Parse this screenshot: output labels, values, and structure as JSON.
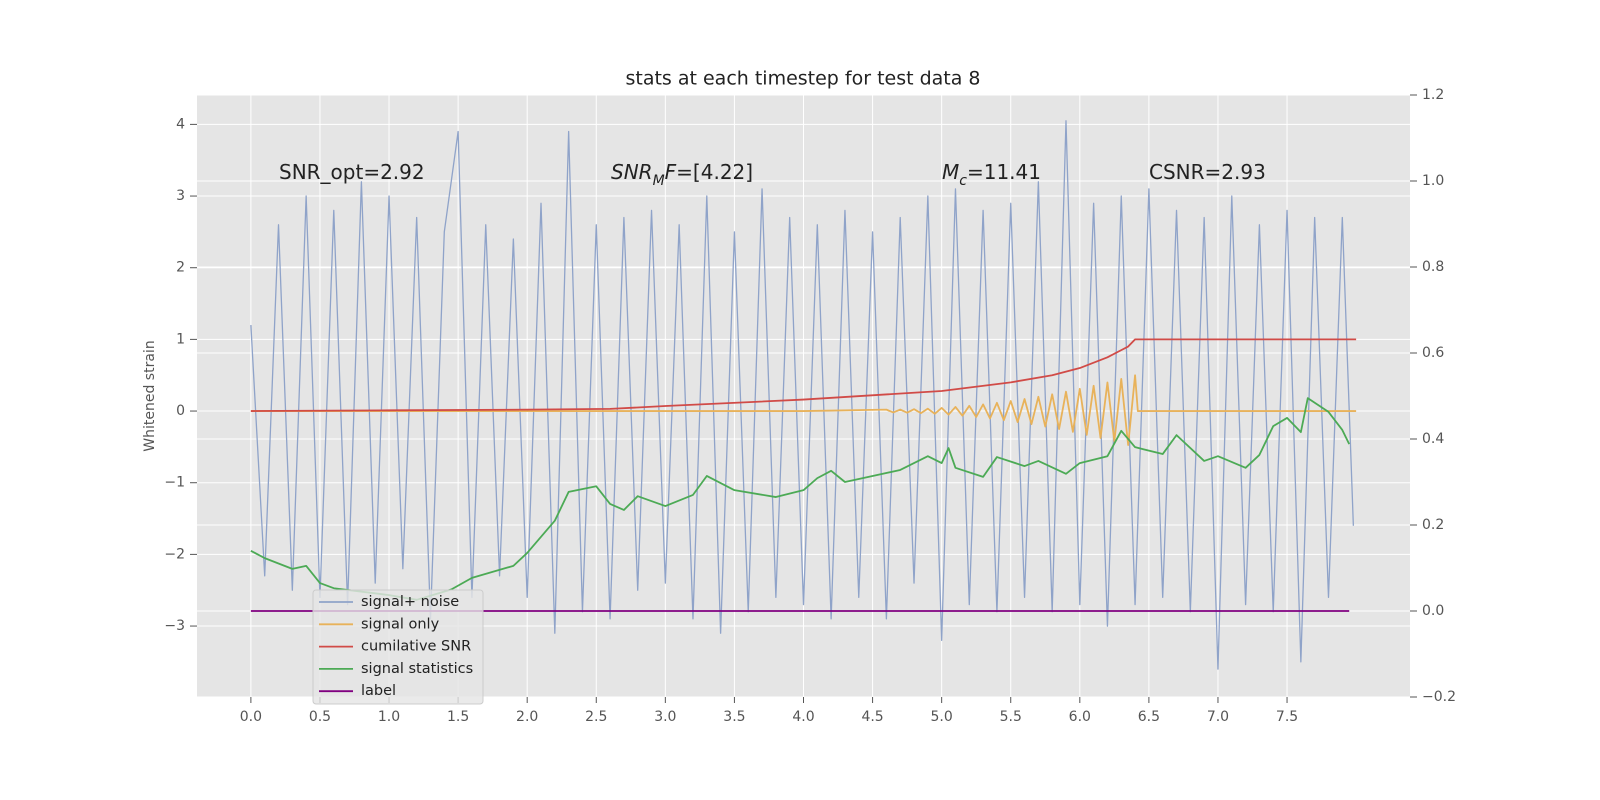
{
  "chart_data": {
    "type": "line",
    "title": "stats at each timestep for test data 8",
    "ylabel": "Whitened strain",
    "grid": true,
    "legend": "lower left",
    "xlim": [
      -0.39,
      8.39
    ],
    "ylim": [
      -3.99,
      4.41
    ],
    "y2lim": [
      -0.2,
      1.2
    ],
    "xticks": [
      {
        "value": 0,
        "label": "0.0"
      },
      0.5,
      {
        "value": 1,
        "label": "1.0"
      },
      1.5,
      {
        "value": 2,
        "label": "2.0"
      },
      2.5,
      {
        "value": 3,
        "label": "3.0"
      },
      3.5,
      {
        "value": 4,
        "label": "4.0"
      },
      4.5,
      {
        "value": 5,
        "label": "5.0"
      },
      5.5,
      {
        "value": 6,
        "label": "6.0"
      },
      6.5,
      {
        "value": 7,
        "label": "7.0"
      },
      7.5
    ],
    "yticks": [
      {
        "value": -3,
        "label": "−3"
      },
      {
        "value": -2,
        "label": "−2"
      },
      {
        "value": -1,
        "label": "−1"
      },
      0,
      1,
      2,
      3,
      4
    ],
    "y2ticks": [
      {
        "value": -0.2,
        "label": "−0.2"
      },
      {
        "value": 0,
        "label": "0.0"
      },
      0.2,
      0.4,
      0.6,
      0.8,
      {
        "value": 1,
        "label": "1.0"
      },
      1.2
    ],
    "annotations": [
      {
        "segments": [
          {
            "text": "SNR_opt=2.92"
          }
        ]
      },
      {
        "segments": [
          {
            "text": "SNR",
            "style": "italic"
          },
          {
            "text": "M",
            "style": "sub"
          },
          {
            "text": "F",
            "style": "italic"
          },
          {
            "text": "=[4.22]"
          }
        ]
      },
      {
        "segments": [
          {
            "text": "M",
            "style": "italic"
          },
          {
            "text": "c",
            "style": "sub"
          },
          {
            "text": "=11.41"
          }
        ]
      },
      {
        "segments": [
          {
            "text": "CSNR=2.93"
          }
        ]
      }
    ],
    "series": [
      {
        "name": "signal+ noise",
        "color": "#8fa3c9",
        "axis": "y",
        "x": [
          0,
          0.1,
          0.2,
          0.3,
          0.4,
          0.5,
          0.6,
          0.7,
          0.8,
          0.9,
          1,
          1.1,
          1.2,
          1.3,
          1.4,
          1.5,
          1.6,
          1.7,
          1.8,
          1.9,
          2,
          2.1,
          2.2,
          2.3,
          2.4,
          2.5,
          2.6,
          2.7,
          2.8,
          2.9,
          3,
          3.1,
          3.2,
          3.3,
          3.4,
          3.5,
          3.6,
          3.7,
          3.8,
          3.9,
          4,
          4.1,
          4.2,
          4.3,
          4.4,
          4.5,
          4.6,
          4.7,
          4.8,
          4.9,
          5,
          5.1,
          5.2,
          5.3,
          5.4,
          5.5,
          5.6,
          5.7,
          5.8,
          5.9,
          6,
          6.1,
          6.2,
          6.3,
          6.4,
          6.5,
          6.6,
          6.7,
          6.8,
          6.9,
          7,
          7.1,
          7.2,
          7.3,
          7.4,
          7.5,
          7.6,
          7.7,
          7.8,
          7.9,
          7.98
        ],
        "values": [
          1.2,
          -2.3,
          2.6,
          -2.5,
          3.0,
          -2.6,
          2.8,
          -2.7,
          3.2,
          -2.4,
          3.0,
          -2.2,
          2.7,
          -2.9,
          2.5,
          3.9,
          -2.6,
          2.6,
          -2.3,
          2.4,
          -2.6,
          2.9,
          -3.1,
          3.9,
          -2.8,
          2.6,
          -2.9,
          2.7,
          -2.5,
          2.8,
          -2.4,
          2.6,
          -2.9,
          3.0,
          -3.1,
          2.5,
          -2.8,
          3.1,
          -2.6,
          2.7,
          -2.7,
          2.6,
          -2.9,
          2.8,
          -2.6,
          2.5,
          -2.9,
          2.7,
          -2.4,
          3.0,
          -3.2,
          3.1,
          -2.7,
          2.8,
          -2.8,
          2.9,
          -2.6,
          3.2,
          -2.8,
          4.05,
          -2.7,
          2.9,
          -3.0,
          3.0,
          -2.7,
          3.1,
          -2.6,
          2.8,
          -2.8,
          2.7,
          -3.6,
          3.0,
          -2.7,
          2.6,
          -2.8,
          2.8,
          -3.5,
          2.7,
          -2.6,
          2.7,
          -1.6
        ]
      },
      {
        "name": "signal only",
        "color": "#e8b25a",
        "axis": "y",
        "x": [
          0,
          4.0,
          4.6,
          4.65,
          4.7,
          4.75,
          4.8,
          4.85,
          4.9,
          4.95,
          5.0,
          5.05,
          5.1,
          5.15,
          5.2,
          5.25,
          5.3,
          5.35,
          5.4,
          5.45,
          5.5,
          5.55,
          5.6,
          5.65,
          5.7,
          5.75,
          5.8,
          5.85,
          5.9,
          5.95,
          6.0,
          6.05,
          6.1,
          6.15,
          6.2,
          6.25,
          6.3,
          6.35,
          6.4,
          6.42,
          8.0
        ],
        "values": [
          0,
          0,
          0.02,
          -0.02,
          0.021,
          -0.023,
          0.026,
          -0.029,
          0.033,
          -0.038,
          0.044,
          -0.05,
          0.057,
          -0.065,
          0.073,
          -0.083,
          0.093,
          -0.103,
          0.115,
          -0.127,
          0.14,
          -0.154,
          0.168,
          -0.183,
          0.199,
          -0.216,
          0.233,
          -0.251,
          0.27,
          -0.29,
          0.31,
          -0.332,
          0.353,
          -0.376,
          0.399,
          -0.423,
          0.448,
          -0.474,
          0.5,
          0,
          0
        ]
      },
      {
        "name": "cumilative SNR",
        "color": "#d14b47",
        "axis": "y",
        "x": [
          0,
          1,
          2,
          2.6,
          3,
          4,
          5,
          5.5,
          5.8,
          6.0,
          6.2,
          6.3,
          6.35,
          6.4,
          8.0
        ],
        "values": [
          0,
          0.01,
          0.02,
          0.03,
          0.07,
          0.16,
          0.28,
          0.4,
          0.5,
          0.6,
          0.75,
          0.85,
          0.9,
          1.0,
          1.0
        ]
      },
      {
        "name": "signal statistics",
        "color": "#4caa55",
        "axis": "y2",
        "x": [
          0,
          0.1,
          0.3,
          0.4,
          0.5,
          0.6,
          1.0,
          1.2,
          1.45,
          1.6,
          1.9,
          2.0,
          2.2,
          2.3,
          2.5,
          2.6,
          2.7,
          2.8,
          3.0,
          3.2,
          3.3,
          3.5,
          3.8,
          4.0,
          4.1,
          4.2,
          4.3,
          4.5,
          4.7,
          4.9,
          5.0,
          5.05,
          5.1,
          5.3,
          5.4,
          5.6,
          5.7,
          5.9,
          6.0,
          6.2,
          6.3,
          6.4,
          6.6,
          6.7,
          6.9,
          7.0,
          7.2,
          7.3,
          7.4,
          7.5,
          7.6,
          7.65,
          7.8,
          7.9,
          7.95
        ],
        "values": [
          0.14,
          0.123,
          0.098,
          0.105,
          0.065,
          0.053,
          0.037,
          0.026,
          0.05,
          0.077,
          0.105,
          0.135,
          0.21,
          0.277,
          0.29,
          0.249,
          0.235,
          0.267,
          0.244,
          0.27,
          0.314,
          0.281,
          0.265,
          0.281,
          0.309,
          0.326,
          0.3,
          0.314,
          0.328,
          0.36,
          0.344,
          0.379,
          0.333,
          0.312,
          0.358,
          0.337,
          0.349,
          0.319,
          0.344,
          0.36,
          0.419,
          0.381,
          0.365,
          0.409,
          0.349,
          0.36,
          0.333,
          0.363,
          0.43,
          0.449,
          0.416,
          0.495,
          0.463,
          0.421,
          0.388
        ]
      },
      {
        "name": "label",
        "color": "#800080",
        "axis": "y2",
        "x": [
          0,
          7.95
        ],
        "values": [
          0,
          0
        ]
      }
    ]
  }
}
